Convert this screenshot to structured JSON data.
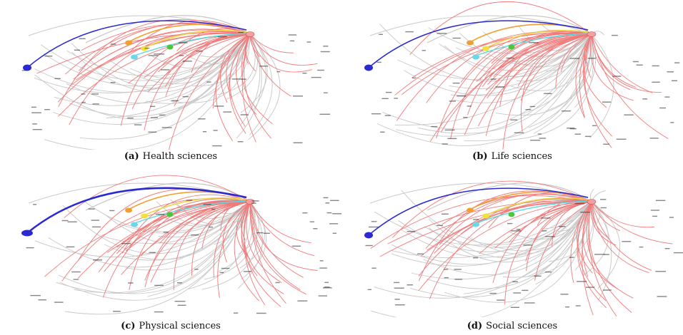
{
  "colors": {
    "gray_edge": "#c8c8c8",
    "red_edge": "#f07a7a",
    "blue_edge": "#2a2ad0",
    "orange_edge": "#f0a030",
    "yellow_edge": "#e8d84a",
    "cyan_edge": "#5cd8e0",
    "green_node": "#4ac83a",
    "hub_node": "#f4a0a0",
    "blue_node": "#2a2ad0",
    "orange_node": "#f0a030",
    "yellow_node": "#f0e040",
    "cyan_node": "#6ad8e8",
    "label_text": "#222222"
  },
  "panels": [
    {
      "id": "a",
      "tag": "(a)",
      "title": "Health sciences",
      "variant": 0
    },
    {
      "id": "b",
      "tag": "(b)",
      "title": "Life sciences",
      "variant": 1
    },
    {
      "id": "c",
      "tag": "(c)",
      "title": "Physical sciences",
      "variant": 2
    },
    {
      "id": "d",
      "tag": "(d)",
      "title": "Social sciences",
      "variant": 3
    }
  ]
}
